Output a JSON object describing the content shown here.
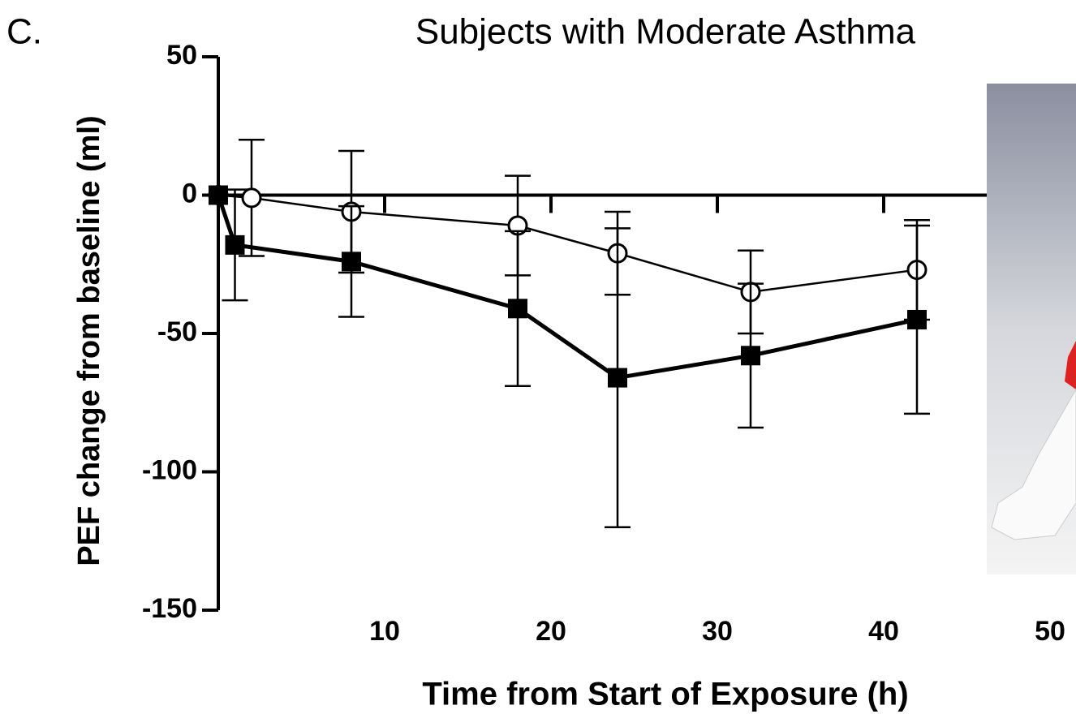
{
  "chart_data": {
    "type": "line",
    "panel_label": "C.",
    "title": "Subjects with Moderate Asthma",
    "x_label": "Time from Start of Exposure (h)",
    "y_label": "PEF change from baseline (ml)",
    "xlim": [
      0,
      50
    ],
    "ylim": [
      -150,
      50
    ],
    "xticks": [
      10,
      20,
      30,
      40,
      50
    ],
    "yticks": [
      50,
      0,
      -50,
      -100,
      -150
    ],
    "series": [
      {
        "marker": "open-circle",
        "color": "#000000",
        "x": [
          0,
          2,
          8,
          18,
          24,
          32,
          42
        ],
        "values": [
          0,
          -1,
          -6,
          -11,
          -21,
          -35,
          -27
        ],
        "errors": [
          0,
          21,
          22,
          18,
          15,
          15,
          18
        ]
      },
      {
        "marker": "filled-square",
        "color": "#000000",
        "x": [
          0,
          1,
          8,
          18,
          24,
          32,
          42
        ],
        "values": [
          0,
          -18,
          -24,
          -41,
          -66,
          -58,
          -45
        ],
        "errors": [
          0,
          20,
          20,
          28,
          54,
          26,
          34
        ]
      }
    ]
  }
}
